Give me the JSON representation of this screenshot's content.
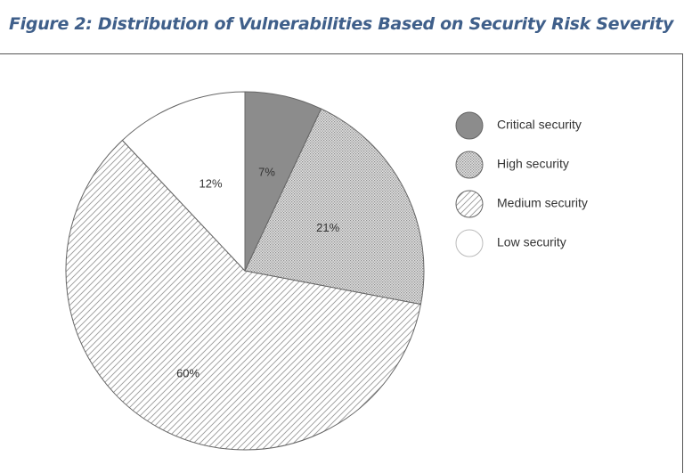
{
  "figure": {
    "title": "Figure 2: Distribution of Vulnerabilities Based on Security Risk Severity"
  },
  "chart_data": {
    "type": "pie",
    "title": "Figure 2: Distribution of Vulnerabilities Based on Security Risk Severity",
    "categories": [
      "Critical security",
      "High security",
      "Medium security",
      "Low security"
    ],
    "values": [
      7,
      21,
      60,
      12
    ],
    "labels": [
      "7%",
      "21%",
      "60%",
      "12%"
    ],
    "fills": [
      "solid-dark-gray",
      "dotted-light-gray",
      "diagonal-hatch",
      "white"
    ],
    "colors": [
      "#8c8c8c",
      "#c8c8c8",
      "#ffffff",
      "#ffffff"
    ],
    "stroke_color": "#666666",
    "start_angle": "12 o'clock",
    "direction": "clockwise",
    "legend_position": "right",
    "legend": [
      "Critical security",
      "High security",
      "Medium security",
      "Low security"
    ]
  }
}
